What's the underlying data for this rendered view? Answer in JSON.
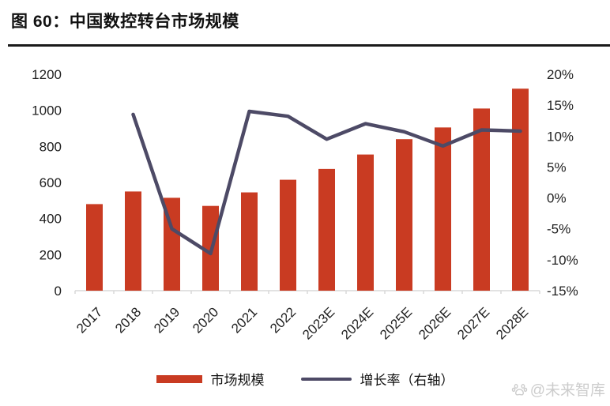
{
  "title": "图 60：中国数控转台市场规模",
  "watermark": {
    "text": "@未来智库"
  },
  "colors": {
    "bar": "#C93B22",
    "line": "#4D4A66",
    "axis_text": "#1f1f1f",
    "axis_line": "#d9d9d9",
    "title_rule": "#1a1a1a",
    "watermark": "#cccccc"
  },
  "chart_data": {
    "type": "bar",
    "subtype": "combo-bar-line-dual-axis",
    "title": "图 60：中国数控转台市场规模",
    "categories": [
      "2017",
      "2018",
      "2019",
      "2020",
      "2021",
      "2022",
      "2023E",
      "2024E",
      "2025E",
      "2026E",
      "2027E",
      "2028E"
    ],
    "series": [
      {
        "name": "市场规模",
        "type": "bar",
        "axis": "left",
        "values": [
          480,
          550,
          515,
          470,
          545,
          615,
          675,
          755,
          840,
          905,
          1010,
          1120
        ]
      },
      {
        "name": "增长率（右轴）",
        "type": "line",
        "axis": "right",
        "values": [
          null,
          13.5,
          -5,
          -9,
          14,
          13.2,
          9.5,
          12,
          10.7,
          8.4,
          11,
          10.8
        ]
      }
    ],
    "left_axis": {
      "ticks": [
        0,
        200,
        400,
        600,
        800,
        1000,
        1200
      ],
      "range": [
        0,
        1200
      ]
    },
    "right_axis": {
      "ticks": [
        "20%",
        "15%",
        "10%",
        "5%",
        "0%",
        "-5%",
        "-10%",
        "-15%"
      ],
      "range": [
        -15,
        20
      ]
    },
    "legend": {
      "bar_label": "市场规模",
      "line_label": "增长率（右轴）"
    },
    "grid": false,
    "legend_position": "bottom",
    "xlabel": "",
    "ylabel": ""
  }
}
